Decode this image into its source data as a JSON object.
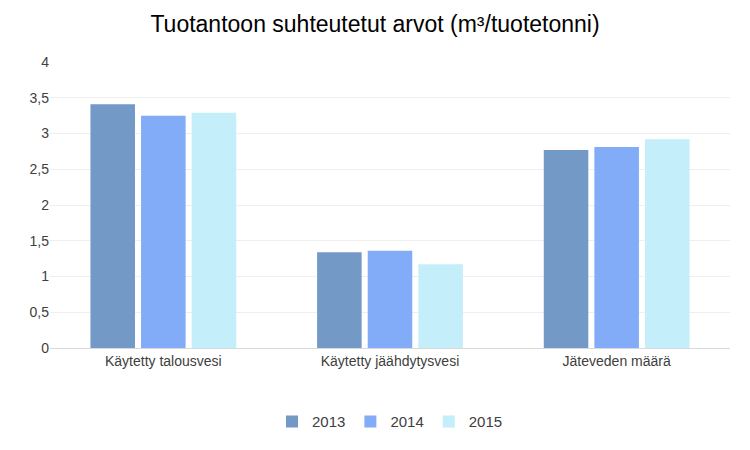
{
  "chart_data": {
    "type": "bar",
    "title": "Tuotantoon suhteutetut arvot (m³/tuotetonni)",
    "categories": [
      "Käytetty talousvesi",
      "Käytetty jäähdytysvesi",
      "Jäteveden määrä"
    ],
    "series": [
      {
        "name": "2013",
        "color": "#7399c6",
        "values": [
          3.41,
          1.34,
          2.77
        ]
      },
      {
        "name": "2014",
        "color": "#82acf7",
        "values": [
          3.25,
          1.36,
          2.81
        ]
      },
      {
        "name": "2015",
        "color": "#c4eefa",
        "values": [
          3.29,
          1.17,
          2.92
        ]
      }
    ],
    "ylim": [
      0,
      4
    ],
    "yticks": [
      0,
      {
        "value": 0.5,
        "label": "0,5"
      },
      1,
      {
        "value": 1.5,
        "label": "1,5"
      },
      2,
      {
        "value": 2.5,
        "label": "2,5"
      },
      3,
      {
        "value": 3.5,
        "label": "3,5"
      },
      4
    ],
    "grid": true,
    "legend": "bottom"
  }
}
